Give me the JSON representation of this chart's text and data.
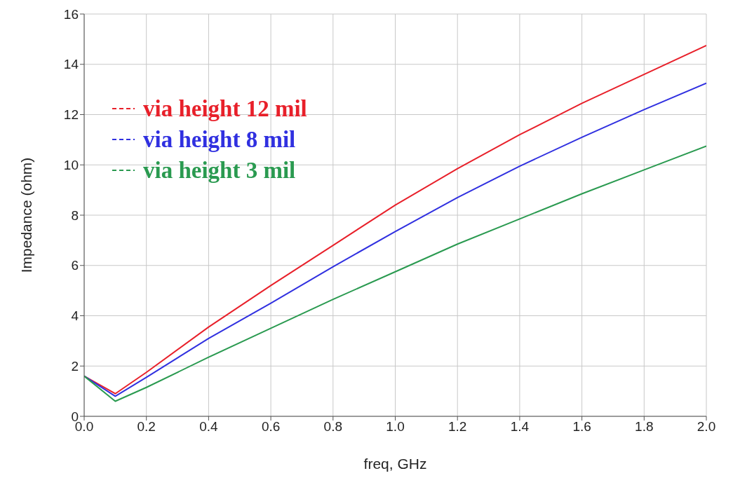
{
  "chart_data": {
    "type": "line",
    "xlabel": "freq, GHz",
    "ylabel": "Impedance (ohm)",
    "x": [
      0,
      0.1,
      0.2,
      0.4,
      0.6,
      0.8,
      1.0,
      1.2,
      1.4,
      1.6,
      1.8,
      2.0
    ],
    "series": [
      {
        "name": "via height 12 mil",
        "color": "#e8202a",
        "values": [
          1.6,
          0.9,
          1.75,
          3.55,
          5.2,
          6.8,
          8.4,
          9.85,
          11.2,
          12.45,
          13.6,
          14.75
        ]
      },
      {
        "name": "via height 8 mil",
        "color": "#3030e0",
        "values": [
          1.6,
          0.8,
          1.55,
          3.1,
          4.5,
          5.95,
          7.35,
          8.7,
          9.95,
          11.1,
          12.2,
          13.25
        ]
      },
      {
        "name": "via height 3 mil",
        "color": "#2a9a50",
        "values": [
          1.6,
          0.6,
          1.15,
          2.35,
          3.5,
          4.65,
          5.75,
          6.85,
          7.85,
          8.85,
          9.8,
          10.75
        ]
      }
    ],
    "xlim": [
      0,
      2.0
    ],
    "xticks": [
      {
        "value": 0,
        "label": "0.0"
      },
      0.2,
      0.4,
      0.6,
      0.8,
      {
        "value": 1.0,
        "label": "1.0"
      },
      1.2,
      1.4,
      1.6,
      1.8,
      {
        "value": 2.0,
        "label": "2.0"
      }
    ],
    "ylim": [
      0,
      16
    ],
    "yticks": [
      0,
      2,
      4,
      6,
      8,
      10,
      12,
      14,
      16
    ],
    "grid": true,
    "legend": "top left",
    "marker": "none",
    "line_style": "solid"
  }
}
